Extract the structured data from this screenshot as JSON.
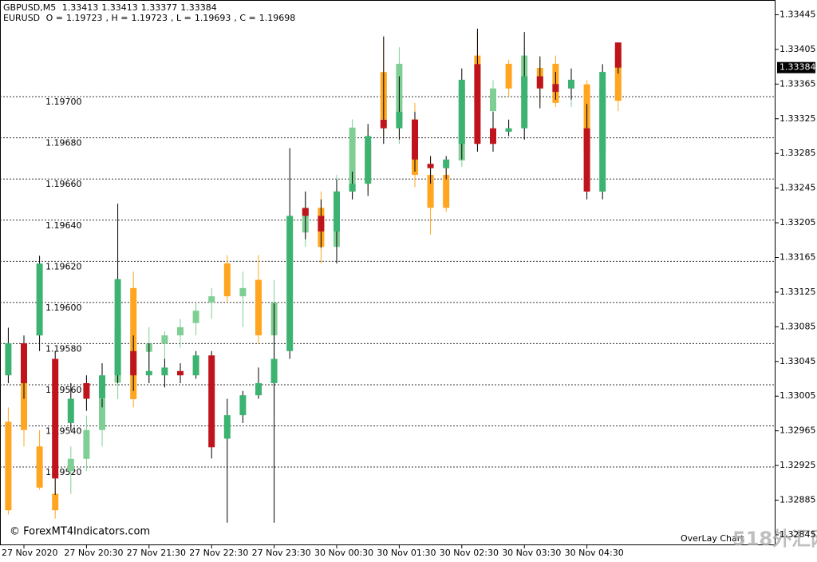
{
  "chart_data": {
    "type": "candlestick",
    "categories": [
      null,
      "27 Nov 2020",
      null,
      null,
      null,
      "27 Nov 20:30",
      null,
      null,
      null,
      "27 Nov 21:30",
      null,
      null,
      null,
      "27 Nov 22:30",
      null,
      null,
      null,
      "27 Nov 23:30",
      null,
      null,
      null,
      "30 Nov 00:30",
      null,
      null,
      null,
      "30 Nov 01:30",
      null,
      null,
      null,
      "30 Nov 02:30",
      null,
      null,
      null,
      "30 Nov 03:30",
      null,
      null,
      null,
      "30 Nov 04:30",
      null,
      null
    ],
    "ylim": [
      1.32833,
      1.33462
    ],
    "yticks": [
      1.33445,
      1.33405,
      1.33365,
      1.33325,
      1.33285,
      1.33245,
      1.33205,
      1.33165,
      1.33125,
      1.33085,
      1.33045,
      1.33005,
      1.32965,
      1.32925,
      1.32885,
      1.32845
    ],
    "y2lim": [
      1.19482,
      1.19747
    ],
    "y2ticks": [
      {
        "value": 1.197,
        "label": "1.19700"
      },
      {
        "value": 1.1968,
        "label": "1.19680"
      },
      {
        "value": 1.1966,
        "label": "1.19660"
      },
      {
        "value": 1.1964,
        "label": "1.19640"
      },
      {
        "value": 1.1962,
        "label": "1.19620"
      },
      {
        "value": 1.196,
        "label": "1.19600"
      },
      {
        "value": 1.1958,
        "label": "1.19580"
      },
      {
        "value": 1.1956,
        "label": "1.19560"
      },
      {
        "value": 1.1954,
        "label": "1.19540"
      },
      {
        "value": 1.1952,
        "label": "1.19520"
      }
    ],
    "grid": true,
    "annotations": [
      "© ForexMT4Indicators.com",
      "OverLay Chart",
      "518外汇网"
    ],
    "series": [
      {
        "name": "GBPUSD,M5",
        "up_color": "#3cb371",
        "down_color": "#c0141c",
        "open": [
          1.33029,
          1.33066,
          1.33075,
          1.33048,
          1.32974,
          1.3302,
          1.33002,
          1.33029,
          1.33057,
          1.33029,
          1.33029,
          1.33034,
          1.33029,
          1.33052,
          1.32956,
          1.32983,
          1.33006,
          1.3302,
          1.33057,
          1.33222,
          1.33213,
          1.33195,
          1.33241,
          1.3325,
          1.33324,
          1.33314,
          1.33324,
          1.33273,
          1.33268,
          1.33296,
          1.33388,
          1.33314,
          1.3331,
          1.33314,
          1.33374,
          1.33365,
          1.3336,
          1.33314,
          1.33241,
          1.33413
        ],
        "high": [
          1.33084,
          1.33075,
          1.33167,
          1.33057,
          1.3302,
          1.33029,
          1.33043,
          1.33227,
          1.33075,
          1.33066,
          1.33048,
          1.33043,
          1.33057,
          1.33057,
          1.33002,
          1.33011,
          1.33038,
          1.33112,
          1.33291,
          1.33241,
          1.33232,
          1.33255,
          1.33264,
          1.33319,
          1.3342,
          1.33374,
          1.33333,
          1.33282,
          1.33282,
          1.33383,
          1.33429,
          1.33333,
          1.33324,
          1.33425,
          1.33397,
          1.33379,
          1.33383,
          1.33342,
          1.33388,
          1.33413
        ],
        "low": [
          1.3302,
          1.33002,
          1.33057,
          1.32891,
          1.32965,
          1.32988,
          1.32992,
          1.3302,
          1.33011,
          1.3302,
          1.33015,
          1.3302,
          1.33025,
          1.32933,
          1.32859,
          1.32974,
          1.33002,
          1.32859,
          1.33048,
          1.33186,
          1.33176,
          1.33158,
          1.33232,
          1.33236,
          1.33296,
          1.33301,
          1.33264,
          1.3325,
          1.33255,
          1.33278,
          1.33287,
          1.33287,
          1.33305,
          1.33301,
          1.33337,
          1.33347,
          1.33347,
          1.33232,
          1.33232,
          1.33377
        ],
        "close": [
          1.33066,
          1.3302,
          1.33158,
          1.3291,
          1.33002,
          1.33002,
          1.33029,
          1.3314,
          1.33029,
          1.33034,
          1.33038,
          1.33029,
          1.33052,
          1.32946,
          1.32983,
          1.33006,
          1.3302,
          1.33048,
          1.33213,
          1.33213,
          1.33195,
          1.33241,
          1.3325,
          1.33305,
          1.33314,
          1.33333,
          1.33278,
          1.33268,
          1.33278,
          1.3337,
          1.33296,
          1.33296,
          1.33314,
          1.33374,
          1.3336,
          1.33356,
          1.3337,
          1.33241,
          1.33379,
          1.33384
        ]
      },
      {
        "name": "EURUSD",
        "axis": "y2",
        "up_color": "#7fcf95",
        "down_color": "#ffa51f",
        "ohlc_labels": [
          "O =",
          ", H =",
          ", L =",
          ", C ="
        ],
        "open": [
          1.19542,
          1.19561,
          1.1953,
          1.19507,
          1.19518,
          1.19524,
          1.19538,
          1.19561,
          1.19607,
          1.19576,
          1.1958,
          1.19584,
          1.1959,
          1.196,
          1.19619,
          1.19603,
          1.19611,
          1.19584,
          1.19619,
          1.19634,
          1.19646,
          1.19627,
          1.19654,
          1.19677,
          1.19712,
          1.19689,
          1.19689,
          1.19662,
          1.19662,
          1.19669,
          1.1972,
          1.19693,
          1.19716,
          1.19704,
          1.19714,
          1.19716,
          1.19704,
          1.19706,
          1.19673,
          1.19723
        ],
        "high": [
          1.19549,
          1.19565,
          1.19538,
          1.19514,
          1.1953,
          1.19545,
          1.19557,
          1.19592,
          1.19615,
          1.19588,
          1.19586,
          1.19592,
          1.196,
          1.19607,
          1.19623,
          1.19615,
          1.19623,
          1.19611,
          1.19638,
          1.19654,
          1.19654,
          1.19662,
          1.19689,
          1.19685,
          1.19729,
          1.19724,
          1.19697,
          1.19671,
          1.19669,
          1.19708,
          1.19731,
          1.19708,
          1.19718,
          1.19724,
          1.19718,
          1.1972,
          1.19712,
          1.19708,
          1.19708,
          1.19723
        ],
        "low": [
          1.19497,
          1.1953,
          1.19509,
          1.19495,
          1.19507,
          1.19518,
          1.1953,
          1.19553,
          1.19549,
          1.19561,
          1.19572,
          1.19578,
          1.19584,
          1.19592,
          1.196,
          1.19588,
          1.1958,
          1.19545,
          1.19615,
          1.19627,
          1.19619,
          1.19619,
          1.1965,
          1.19654,
          1.19681,
          1.19677,
          1.19656,
          1.19633,
          1.19644,
          1.19666,
          1.19689,
          1.19685,
          1.197,
          1.19697,
          1.19697,
          1.19695,
          1.19695,
          1.19671,
          1.19669,
          1.19693
        ],
        "close": [
          1.19499,
          1.19538,
          1.1951,
          1.19499,
          1.19524,
          1.19538,
          1.19553,
          1.19588,
          1.19553,
          1.1958,
          1.19584,
          1.19588,
          1.19596,
          1.19603,
          1.19603,
          1.19607,
          1.19584,
          1.196,
          1.19631,
          1.19646,
          1.19627,
          1.19654,
          1.19685,
          1.19658,
          1.19689,
          1.19716,
          1.19662,
          1.19646,
          1.19646,
          1.19704,
          1.19693,
          1.19704,
          1.19704,
          1.1972,
          1.19704,
          1.19697,
          1.19708,
          1.19673,
          1.19704,
          1.19698
        ]
      }
    ]
  }
}
